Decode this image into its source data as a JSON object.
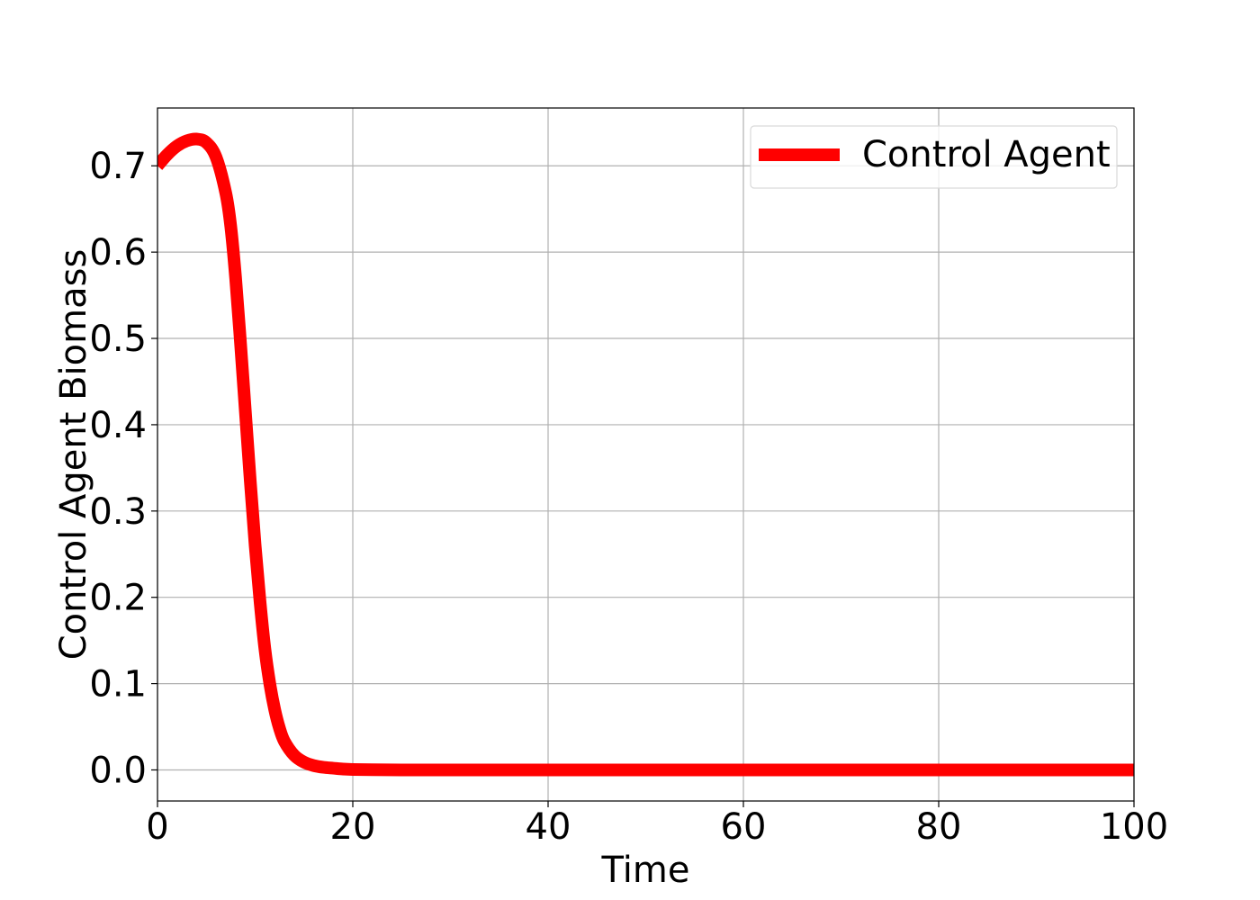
{
  "chart_data": {
    "type": "line",
    "title": "",
    "xlabel": "Time",
    "ylabel": "Control Agent Biomass",
    "xlim": [
      0,
      100
    ],
    "ylim": [
      -0.036,
      0.767
    ],
    "x_ticks": [
      0,
      20,
      40,
      60,
      80,
      100
    ],
    "x_tick_labels": [
      "0",
      "20",
      "40",
      "60",
      "80",
      "100"
    ],
    "y_ticks": [
      0.0,
      0.1,
      0.2,
      0.3,
      0.4,
      0.5,
      0.6,
      0.7
    ],
    "y_tick_labels": [
      "0.0",
      "0.1",
      "0.2",
      "0.3",
      "0.4",
      "0.5",
      "0.6",
      "0.7"
    ],
    "grid": true,
    "legend_position": "top-right",
    "series": [
      {
        "name": "Control Agent",
        "color": "#ff0000",
        "x": [
          0,
          1,
          2,
          3,
          4,
          5,
          6,
          7,
          7.5,
          8,
          8.5,
          9,
          9.5,
          10,
          10.5,
          11,
          11.5,
          12,
          12.5,
          13,
          14,
          15,
          16,
          17,
          18,
          19,
          20,
          22,
          25,
          30,
          40,
          50,
          60,
          70,
          80,
          90,
          100
        ],
        "y": [
          0.7,
          0.713,
          0.723,
          0.729,
          0.731,
          0.727,
          0.71,
          0.668,
          0.63,
          0.57,
          0.495,
          0.415,
          0.335,
          0.26,
          0.195,
          0.14,
          0.1,
          0.07,
          0.048,
          0.033,
          0.017,
          0.009,
          0.005,
          0.003,
          0.002,
          0.001,
          0.0005,
          0.0002,
          0.0,
          0.0,
          0.0,
          0.0,
          0.0,
          0.0,
          0.0,
          0.0,
          0.0
        ]
      }
    ]
  }
}
